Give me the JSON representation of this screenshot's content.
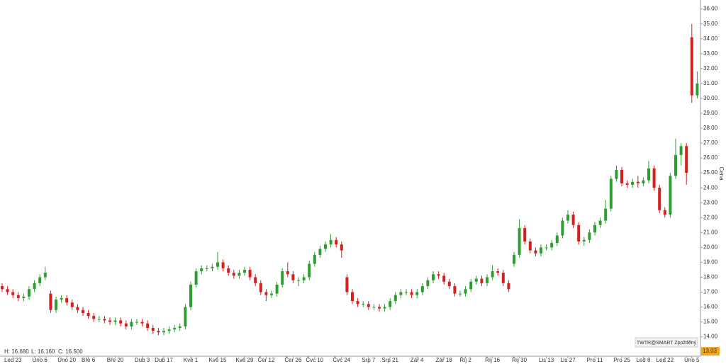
{
  "chart_data": {
    "type": "candlestick",
    "y_axis_label": "Cena",
    "source_badge": "TWTR@SMART Zpožděný",
    "info": {
      "high": "H: 16.680",
      "low": "L: 16.160",
      "close": "C: 16.500"
    },
    "last_price": 13.03,
    "up_color": "#2e9e32",
    "down_color": "#d61f1f",
    "categories": [
      null,
      null,
      "Led 23",
      null,
      null,
      null,
      null,
      "Úno 6",
      null,
      null,
      null,
      null,
      "Úno 20",
      null,
      null,
      null,
      "Bře 6",
      null,
      null,
      null,
      null,
      "Bře 20",
      null,
      null,
      null,
      null,
      "Dub 3",
      null,
      null,
      null,
      "Dub 17",
      null,
      null,
      null,
      null,
      "Kvě 1",
      null,
      null,
      null,
      null,
      "Kvě 15",
      null,
      null,
      null,
      null,
      "Kvě 29",
      null,
      null,
      null,
      "Čer 12",
      null,
      null,
      null,
      null,
      "Čer 26",
      null,
      null,
      null,
      "Čvc 10",
      null,
      null,
      null,
      null,
      "Čvc 24",
      null,
      null,
      null,
      null,
      "Srp 7",
      null,
      null,
      null,
      "Srp 21",
      null,
      null,
      null,
      null,
      "Zář 4",
      null,
      null,
      null,
      null,
      "Zář 18",
      null,
      null,
      null,
      "Říj 2",
      null,
      null,
      null,
      null,
      "Říj 16",
      null,
      null,
      null,
      null,
      "Říj 30",
      null,
      null,
      null,
      null,
      "Lis 13",
      null,
      null,
      null,
      "Lis 27",
      null,
      null,
      null,
      null,
      "Pro 11",
      null,
      null,
      null,
      null,
      "Pro 25",
      null,
      null,
      null,
      "Led 8",
      null,
      null,
      null,
      "Led 22",
      null,
      null,
      null,
      null,
      "Úno 5",
      null
    ],
    "open": [
      17.4,
      17.2,
      17.0,
      16.8,
      16.6,
      16.7,
      17.2,
      17.6,
      18.0,
      16.9,
      15.8,
      16.5,
      16.6,
      16.3,
      16.0,
      15.8,
      15.6,
      15.4,
      15.2,
      15.2,
      15.1,
      15.0,
      15.1,
      14.9,
      14.7,
      15.0,
      15.0,
      14.9,
      14.6,
      14.4,
      14.3,
      14.4,
      14.5,
      14.6,
      14.7,
      16.0,
      17.5,
      18.4,
      18.6,
      18.6,
      18.7,
      19.0,
      18.6,
      18.3,
      18.1,
      18.3,
      18.5,
      18.0,
      17.6,
      17.0,
      16.8,
      16.9,
      17.5,
      18.4,
      18.2,
      17.8,
      17.8,
      18.0,
      18.9,
      19.5,
      19.9,
      20.2,
      20.5,
      20.2,
      18.0,
      17.0,
      16.4,
      16.2,
      16.2,
      16.0,
      16.0,
      15.9,
      16.0,
      16.4,
      16.8,
      17.0,
      17.0,
      16.8,
      17.0,
      17.4,
      17.8,
      18.2,
      18.1,
      17.7,
      17.4,
      16.9,
      16.9,
      17.2,
      17.7,
      17.9,
      17.6,
      18.0,
      18.4,
      18.3,
      17.6,
      18.9,
      19.5,
      21.3,
      20.4,
      19.8,
      19.6,
      20.0,
      20.0,
      20.3,
      20.8,
      21.8,
      22.2,
      21.5,
      20.4,
      20.5,
      21.0,
      21.5,
      21.8,
      22.6,
      24.6,
      25.2,
      24.3,
      24.2,
      24.4,
      24.3,
      24.5,
      25.3,
      24.0,
      22.5,
      22.2,
      24.8,
      26.2,
      26.8,
      34.1,
      30.2
    ],
    "high": [
      17.6,
      17.4,
      17.2,
      17.0,
      16.9,
      17.4,
      17.8,
      18.2,
      18.7,
      17.1,
      16.7,
      16.8,
      16.8,
      16.5,
      16.2,
      16.0,
      15.8,
      15.6,
      15.4,
      15.4,
      15.3,
      15.3,
      15.3,
      15.1,
      15.2,
      15.2,
      15.2,
      15.1,
      14.8,
      14.6,
      14.6,
      14.7,
      14.8,
      14.9,
      16.2,
      17.7,
      18.6,
      18.8,
      18.8,
      18.9,
      19.7,
      19.2,
      18.8,
      18.5,
      18.5,
      18.7,
      18.7,
      18.2,
      17.8,
      17.2,
      17.1,
      17.7,
      18.6,
      19.0,
      18.4,
      18.0,
      18.2,
      19.1,
      19.7,
      20.1,
      20.4,
      20.9,
      20.7,
      20.4,
      18.2,
      17.2,
      16.6,
      16.4,
      16.4,
      16.2,
      16.2,
      16.2,
      16.6,
      17.0,
      17.2,
      17.2,
      17.2,
      17.2,
      17.6,
      18.0,
      18.4,
      18.4,
      18.3,
      17.9,
      17.6,
      17.1,
      17.4,
      17.9,
      18.1,
      18.1,
      18.2,
      18.8,
      18.6,
      18.5,
      17.8,
      19.7,
      21.9,
      21.5,
      20.6,
      20.0,
      20.2,
      20.2,
      20.5,
      21.0,
      22.0,
      22.5,
      22.4,
      21.7,
      20.7,
      21.2,
      21.7,
      22.0,
      23.2,
      24.8,
      25.5,
      25.4,
      24.5,
      24.6,
      24.8,
      24.7,
      25.8,
      25.5,
      24.2,
      22.7,
      25.0,
      27.3,
      27.0,
      27.0,
      35.0,
      31.8
    ],
    "low": [
      17.0,
      16.8,
      16.6,
      16.4,
      16.4,
      16.5,
      17.0,
      17.4,
      17.8,
      15.6,
      15.6,
      16.3,
      16.1,
      15.8,
      15.6,
      15.4,
      15.2,
      15.0,
      15.0,
      14.9,
      14.8,
      14.8,
      14.7,
      14.5,
      14.5,
      14.8,
      14.7,
      14.4,
      14.2,
      14.1,
      14.1,
      14.2,
      14.3,
      14.4,
      14.5,
      15.8,
      17.3,
      18.2,
      18.4,
      18.4,
      18.5,
      18.4,
      18.1,
      17.9,
      17.9,
      18.1,
      17.8,
      17.4,
      16.8,
      16.4,
      16.6,
      16.7,
      17.3,
      18.0,
      17.6,
      17.4,
      17.6,
      17.8,
      18.7,
      19.3,
      19.7,
      20.0,
      20.0,
      19.3,
      16.8,
      16.2,
      16.0,
      16.0,
      15.8,
      15.8,
      15.7,
      15.7,
      15.8,
      16.2,
      16.6,
      16.8,
      16.6,
      16.6,
      16.8,
      17.2,
      17.6,
      17.9,
      17.5,
      17.2,
      16.7,
      16.7,
      16.7,
      17.0,
      17.5,
      17.4,
      17.4,
      17.8,
      18.1,
      17.4,
      17.0,
      18.7,
      19.3,
      20.2,
      19.6,
      19.4,
      19.4,
      19.8,
      19.8,
      20.1,
      20.6,
      21.6,
      21.3,
      20.2,
      20.1,
      20.3,
      20.8,
      21.3,
      21.6,
      22.4,
      24.4,
      24.1,
      24.0,
      24.0,
      24.0,
      24.1,
      24.3,
      23.8,
      22.3,
      22.0,
      22.0,
      24.6,
      25.5,
      24.2,
      29.7,
      30.0
    ],
    "close": [
      17.2,
      17.0,
      16.8,
      16.6,
      16.7,
      17.2,
      17.6,
      18.0,
      18.3,
      15.8,
      16.5,
      16.6,
      16.3,
      16.0,
      15.8,
      15.6,
      15.4,
      15.2,
      15.2,
      15.1,
      15.0,
      15.1,
      14.9,
      14.7,
      15.0,
      15.0,
      14.9,
      14.6,
      14.4,
      14.3,
      14.4,
      14.5,
      14.6,
      14.7,
      16.0,
      17.5,
      18.4,
      18.6,
      18.6,
      18.7,
      19.0,
      18.6,
      18.3,
      18.1,
      18.3,
      18.5,
      18.0,
      17.6,
      17.0,
      16.8,
      16.9,
      17.5,
      18.4,
      18.2,
      17.8,
      17.8,
      18.0,
      18.9,
      19.5,
      19.9,
      20.2,
      20.5,
      20.2,
      19.8,
      17.0,
      16.4,
      16.2,
      16.2,
      16.0,
      16.0,
      15.9,
      16.0,
      16.4,
      16.8,
      17.0,
      17.0,
      16.8,
      17.0,
      17.4,
      17.8,
      18.2,
      18.1,
      17.7,
      17.4,
      16.9,
      16.9,
      17.2,
      17.7,
      17.9,
      17.6,
      18.0,
      18.4,
      18.3,
      17.6,
      17.2,
      19.5,
      21.3,
      20.4,
      19.8,
      19.6,
      20.0,
      20.0,
      20.3,
      20.8,
      21.8,
      22.2,
      21.5,
      20.4,
      20.5,
      21.0,
      21.5,
      21.8,
      22.6,
      24.6,
      25.2,
      24.3,
      24.2,
      24.4,
      24.3,
      24.5,
      25.3,
      24.0,
      22.5,
      22.2,
      24.8,
      26.2,
      26.8,
      25.0,
      30.2,
      31.0
    ],
    "ylim": [
      12.7,
      36.6
    ],
    "yticks": [
      {
        "value": 14,
        "label": "14.00"
      },
      {
        "value": 15,
        "label": "15.00"
      },
      {
        "value": 16,
        "label": "16.00"
      },
      {
        "value": 17,
        "label": "17.00"
      },
      {
        "value": 18,
        "label": "18.00"
      },
      {
        "value": 19,
        "label": "19.00"
      },
      {
        "value": 20,
        "label": "20.00"
      },
      {
        "value": 21,
        "label": "21.00"
      },
      {
        "value": 22,
        "label": "22.00"
      },
      {
        "value": 23,
        "label": "23.00"
      },
      {
        "value": 24,
        "label": "24.00"
      },
      {
        "value": 25,
        "label": "25.00"
      },
      {
        "value": 26,
        "label": "26.00"
      },
      {
        "value": 27,
        "label": "27.00"
      },
      {
        "value": 28,
        "label": "28.00"
      },
      {
        "value": 29,
        "label": "29.00"
      },
      {
        "value": 30,
        "label": "30.00"
      },
      {
        "value": 31,
        "label": "31.00"
      },
      {
        "value": 32,
        "label": "32.00"
      },
      {
        "value": 33,
        "label": "33.00"
      },
      {
        "value": 34,
        "label": "34.00"
      },
      {
        "value": 35,
        "label": "35.00"
      },
      {
        "value": 36,
        "label": "36.00"
      }
    ],
    "grid": false
  }
}
